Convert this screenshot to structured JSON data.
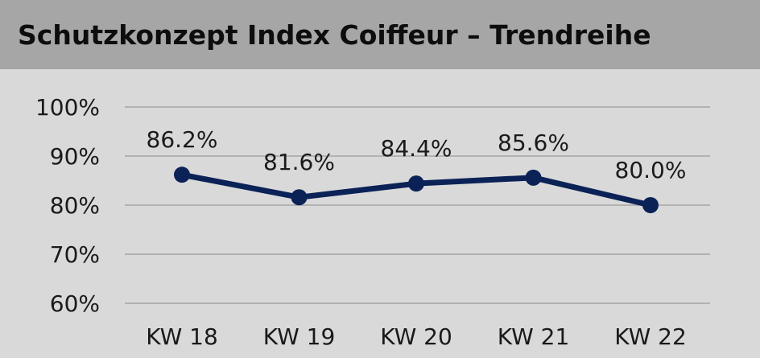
{
  "header": {
    "title": "Schutzkonzept Index Coiffeur – Trendreihe"
  },
  "chart_data": {
    "type": "line",
    "title": "Schutzkonzept Index Coiffeur – Trendreihe",
    "categories": [
      "KW 18",
      "KW 19",
      "KW 20",
      "KW 21",
      "KW 22"
    ],
    "series": [
      {
        "values": [
          86.2,
          81.6,
          84.4,
          85.6,
          80.0
        ],
        "data_labels": [
          "86.2%",
          "81.6%",
          "84.4%",
          "85.6%",
          "80.0%"
        ],
        "color": "#0b2257"
      }
    ],
    "ylim": [
      60,
      100
    ],
    "yticks": [
      60,
      70,
      80,
      90,
      100
    ],
    "ytick_labels": [
      "60%",
      "70%",
      "80%",
      "90%",
      "100%"
    ],
    "xlabel": "",
    "ylabel": "",
    "grid": true,
    "colors": {
      "header_bg": "#a6a6a6",
      "plot_bg": "#d9d9d9",
      "grid": "#a6a6a6",
      "text": "#1a1a1a"
    }
  }
}
